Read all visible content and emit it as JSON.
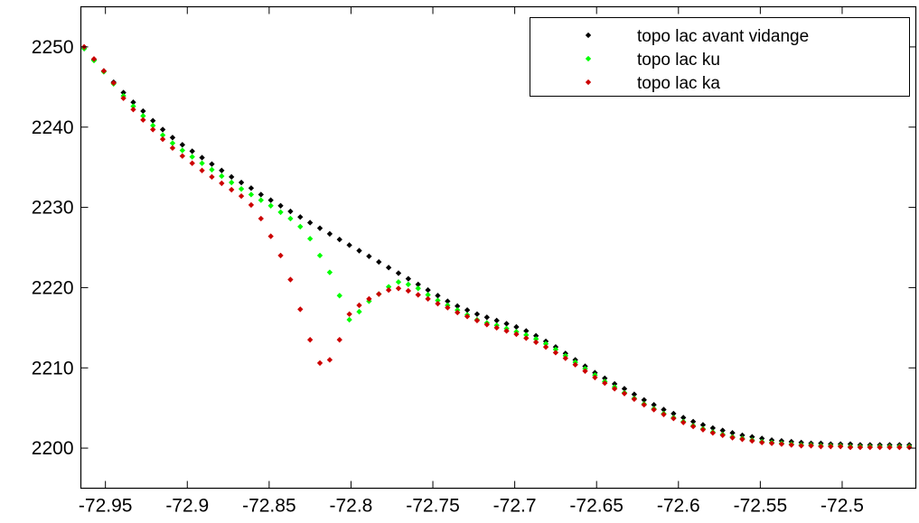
{
  "chart_data": {
    "type": "scatter",
    "title": "",
    "xlabel": "",
    "ylabel": "",
    "xlim": [
      -72.965,
      -72.455
    ],
    "ylim": [
      2195,
      2255
    ],
    "grid": false,
    "legend_position": "top-right",
    "x_ticks": [
      -72.95,
      -72.9,
      -72.85,
      -72.8,
      -72.75,
      -72.7,
      -72.65,
      -72.6,
      -72.55,
      -72.5
    ],
    "x_tick_labels": [
      "-72.95",
      "-72.9",
      "-72.85",
      "-72.8",
      "-72.75",
      "-72.7",
      "-72.65",
      "-72.6",
      "-72.55",
      "-72.5"
    ],
    "y_ticks": [
      2200,
      2210,
      2220,
      2230,
      2240,
      2250
    ],
    "y_tick_labels": [
      "2200",
      "2210",
      "2220",
      "2230",
      "2240",
      "2250"
    ],
    "series": [
      {
        "name": "topo lac avant vidange",
        "color": "#000000",
        "x": [
          -72.963,
          -72.957,
          -72.951,
          -72.945,
          -72.939,
          -72.933,
          -72.927,
          -72.921,
          -72.915,
          -72.909,
          -72.903,
          -72.897,
          -72.891,
          -72.885,
          -72.879,
          -72.873,
          -72.867,
          -72.861,
          -72.855,
          -72.849,
          -72.843,
          -72.837,
          -72.831,
          -72.825,
          -72.819,
          -72.813,
          -72.807,
          -72.801,
          -72.795,
          -72.789,
          -72.783,
          -72.777,
          -72.771,
          -72.765,
          -72.759,
          -72.753,
          -72.747,
          -72.741,
          -72.735,
          -72.729,
          -72.723,
          -72.717,
          -72.711,
          -72.705,
          -72.699,
          -72.693,
          -72.687,
          -72.681,
          -72.675,
          -72.669,
          -72.663,
          -72.657,
          -72.651,
          -72.645,
          -72.639,
          -72.633,
          -72.627,
          -72.621,
          -72.615,
          -72.609,
          -72.603,
          -72.597,
          -72.591,
          -72.585,
          -72.579,
          -72.573,
          -72.567,
          -72.561,
          -72.555,
          -72.549,
          -72.543,
          -72.537,
          -72.531,
          -72.525,
          -72.519,
          -72.513,
          -72.507,
          -72.501,
          -72.495,
          -72.489,
          -72.483,
          -72.477,
          -72.471,
          -72.465,
          -72.459
        ],
        "y": [
          2249.8,
          2248.4,
          2247.0,
          2245.6,
          2244.3,
          2243.1,
          2242.0,
          2240.8,
          2239.7,
          2238.7,
          2237.8,
          2237.0,
          2236.2,
          2235.4,
          2234.6,
          2233.8,
          2233.1,
          2232.4,
          2231.6,
          2230.9,
          2230.2,
          2229.5,
          2228.8,
          2228.1,
          2227.4,
          2226.7,
          2226.0,
          2225.3,
          2224.6,
          2223.9,
          2223.2,
          2222.5,
          2221.8,
          2221.1,
          2220.4,
          2219.7,
          2219.0,
          2218.3,
          2217.7,
          2217.2,
          2216.7,
          2216.3,
          2215.9,
          2215.5,
          2215.1,
          2214.6,
          2214.0,
          2213.3,
          2212.6,
          2211.8,
          2211.0,
          2210.2,
          2209.4,
          2208.7,
          2208.0,
          2207.4,
          2206.7,
          2206.0,
          2205.4,
          2204.8,
          2204.3,
          2203.8,
          2203.3,
          2202.9,
          2202.5,
          2202.2,
          2201.9,
          2201.6,
          2201.4,
          2201.2,
          2201.0,
          2200.9,
          2200.8,
          2200.7,
          2200.6,
          2200.6,
          2200.5,
          2200.5,
          2200.5,
          2200.4,
          2200.4,
          2200.4,
          2200.4,
          2200.4,
          2200.4
        ]
      },
      {
        "name": "topo lac ku",
        "color": "#00ff00",
        "x": [
          -72.963,
          -72.957,
          -72.951,
          -72.945,
          -72.939,
          -72.933,
          -72.927,
          -72.921,
          -72.915,
          -72.909,
          -72.903,
          -72.897,
          -72.891,
          -72.885,
          -72.879,
          -72.873,
          -72.867,
          -72.861,
          -72.855,
          -72.849,
          -72.843,
          -72.837,
          -72.831,
          -72.825,
          -72.819,
          -72.813,
          -72.807,
          -72.801,
          -72.795,
          -72.789,
          -72.783,
          -72.777,
          -72.771,
          -72.765,
          -72.759,
          -72.753,
          -72.747,
          -72.741,
          -72.735,
          -72.729,
          -72.723,
          -72.717,
          -72.711,
          -72.705,
          -72.699,
          -72.693,
          -72.687,
          -72.681,
          -72.675,
          -72.669,
          -72.663,
          -72.657,
          -72.651,
          -72.645,
          -72.639,
          -72.633,
          -72.627,
          -72.621,
          -72.615,
          -72.609,
          -72.603,
          -72.597,
          -72.591,
          -72.585,
          -72.579,
          -72.573,
          -72.567,
          -72.561,
          -72.555,
          -72.549,
          -72.543,
          -72.537,
          -72.531,
          -72.525,
          -72.519,
          -72.513,
          -72.507,
          -72.501,
          -72.495,
          -72.489,
          -72.483,
          -72.477,
          -72.471,
          -72.465,
          -72.459
        ],
        "y": [
          2249.8,
          2248.3,
          2246.9,
          2245.4,
          2243.9,
          2242.6,
          2241.4,
          2240.2,
          2239.0,
          2238.0,
          2237.1,
          2236.3,
          2235.5,
          2234.7,
          2233.9,
          2233.1,
          2232.3,
          2231.6,
          2230.9,
          2230.2,
          2229.4,
          2228.6,
          2227.6,
          2226.1,
          2224.0,
          2221.9,
          2219.0,
          2216.0,
          2217.0,
          2218.3,
          2219.2,
          2220.1,
          2220.7,
          2220.4,
          2219.9,
          2219.1,
          2218.4,
          2217.8,
          2217.2,
          2216.6,
          2216.0,
          2215.6,
          2215.3,
          2214.9,
          2214.5,
          2214.1,
          2213.6,
          2213.0,
          2212.3,
          2211.5,
          2210.7,
          2209.9,
          2209.1,
          2208.3,
          2207.6,
          2206.9,
          2206.2,
          2205.5,
          2204.9,
          2204.3,
          2203.8,
          2203.3,
          2202.8,
          2202.4,
          2202.0,
          2201.7,
          2201.4,
          2201.2,
          2201.0,
          2200.8,
          2200.7,
          2200.6,
          2200.5,
          2200.4,
          2200.4,
          2200.3,
          2200.3,
          2200.3,
          2200.2,
          2200.2,
          2200.2,
          2200.2,
          2200.2,
          2200.2,
          2200.2
        ]
      },
      {
        "name": "topo lac ka",
        "color": "#cc0000",
        "x": [
          -72.963,
          -72.957,
          -72.951,
          -72.945,
          -72.939,
          -72.933,
          -72.927,
          -72.921,
          -72.915,
          -72.909,
          -72.903,
          -72.897,
          -72.891,
          -72.885,
          -72.879,
          -72.873,
          -72.867,
          -72.861,
          -72.855,
          -72.849,
          -72.843,
          -72.837,
          -72.831,
          -72.825,
          -72.819,
          -72.813,
          -72.807,
          -72.801,
          -72.795,
          -72.789,
          -72.783,
          -72.777,
          -72.771,
          -72.765,
          -72.759,
          -72.753,
          -72.747,
          -72.741,
          -72.735,
          -72.729,
          -72.723,
          -72.717,
          -72.711,
          -72.705,
          -72.699,
          -72.693,
          -72.687,
          -72.681,
          -72.675,
          -72.669,
          -72.663,
          -72.657,
          -72.651,
          -72.645,
          -72.639,
          -72.633,
          -72.627,
          -72.621,
          -72.615,
          -72.609,
          -72.603,
          -72.597,
          -72.591,
          -72.585,
          -72.579,
          -72.573,
          -72.567,
          -72.561,
          -72.555,
          -72.549,
          -72.543,
          -72.537,
          -72.531,
          -72.525,
          -72.519,
          -72.513,
          -72.507,
          -72.501,
          -72.495,
          -72.489,
          -72.483,
          -72.477,
          -72.471,
          -72.465,
          -72.459
        ],
        "y": [
          2250.0,
          2248.5,
          2247.0,
          2245.5,
          2243.6,
          2242.2,
          2240.9,
          2239.7,
          2238.5,
          2237.4,
          2236.4,
          2235.5,
          2234.6,
          2233.8,
          2233.0,
          2232.2,
          2231.4,
          2230.3,
          2228.6,
          2226.4,
          2224.0,
          2221.0,
          2217.3,
          2213.5,
          2210.6,
          2211.0,
          2213.5,
          2216.7,
          2217.8,
          2218.6,
          2219.2,
          2219.7,
          2219.9,
          2219.6,
          2219.1,
          2218.6,
          2218.0,
          2217.5,
          2216.9,
          2216.4,
          2215.9,
          2215.4,
          2215.0,
          2214.6,
          2214.2,
          2213.7,
          2213.2,
          2212.6,
          2211.9,
          2211.2,
          2210.4,
          2209.6,
          2208.8,
          2208.1,
          2207.4,
          2206.8,
          2206.1,
          2205.4,
          2204.8,
          2204.2,
          2203.7,
          2203.2,
          2202.7,
          2202.3,
          2201.9,
          2201.6,
          2201.3,
          2201.1,
          2200.9,
          2200.7,
          2200.6,
          2200.5,
          2200.4,
          2200.3,
          2200.3,
          2200.2,
          2200.2,
          2200.2,
          2200.1,
          2200.1,
          2200.1,
          2200.1,
          2200.1,
          2200.1,
          2200.1
        ]
      }
    ]
  }
}
